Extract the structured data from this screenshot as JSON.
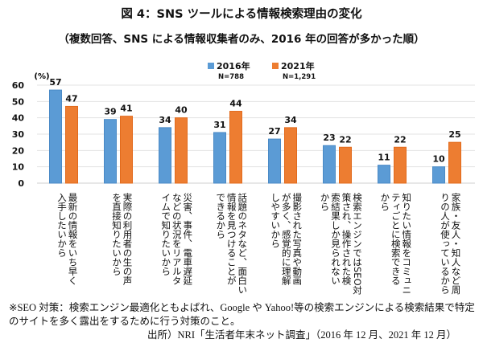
{
  "title": "図 4：SNS ツールによる情報検索理由の変化",
  "subtitle": "（複数回答、SNS による情報収集者のみ、2016 年の回答が多かった順）",
  "chart_data": {
    "type": "bar",
    "title": "図 4：SNS ツールによる情報検索理由の変化",
    "subtitle": "（複数回答、SNS による情報収集者のみ、2016 年の回答が多かった順）",
    "ylabel": "(%)",
    "xlabel": "",
    "ylim": [
      0,
      60
    ],
    "yticks": [
      0,
      10,
      20,
      30,
      40,
      50,
      60
    ],
    "grid": true,
    "legend_position": "top-center",
    "categories": [
      "最新の情報をいち早く\n入手したいから",
      "実際の利用者の生の声\nを直接知りたいから",
      "災害、事件、電車遅延\nなどの状況をリアルタ\nイムで知りたいから",
      "話題のネタなど、面白い\n情報を見つけることが\nできるから",
      "撮影された写真や動画\nが多く、感覚的に理解\nしやすいから",
      "検索エンジンではSEO対\n策され、操作された検\n索結果しか見られない\nから",
      "知りたい情報をコミュニ\nティごとに検索できる\nから",
      "家族・友人・知人など周\nりの人が使っているから"
    ],
    "series": [
      {
        "name": "2016年",
        "n_label": "N=788",
        "color": "#5b9bd5",
        "values": [
          57,
          39,
          34,
          31,
          27,
          23,
          11,
          10
        ]
      },
      {
        "name": "2021年",
        "n_label": "N=1,291",
        "color": "#ed7d31",
        "values": [
          47,
          41,
          40,
          44,
          34,
          22,
          22,
          25
        ]
      }
    ]
  },
  "notes": {
    "line1": "※SEO 対策：検索エンジン最適化ともよばれ、Google や Yahoo!等の検索エンジンによる検索結果で特定",
    "line2": "のサイトを多く露出をするために行う対策のこと。",
    "source": "出所）NRI「生活者年末ネット調査」（2016 年 12 月、2021 年 12 月）"
  }
}
